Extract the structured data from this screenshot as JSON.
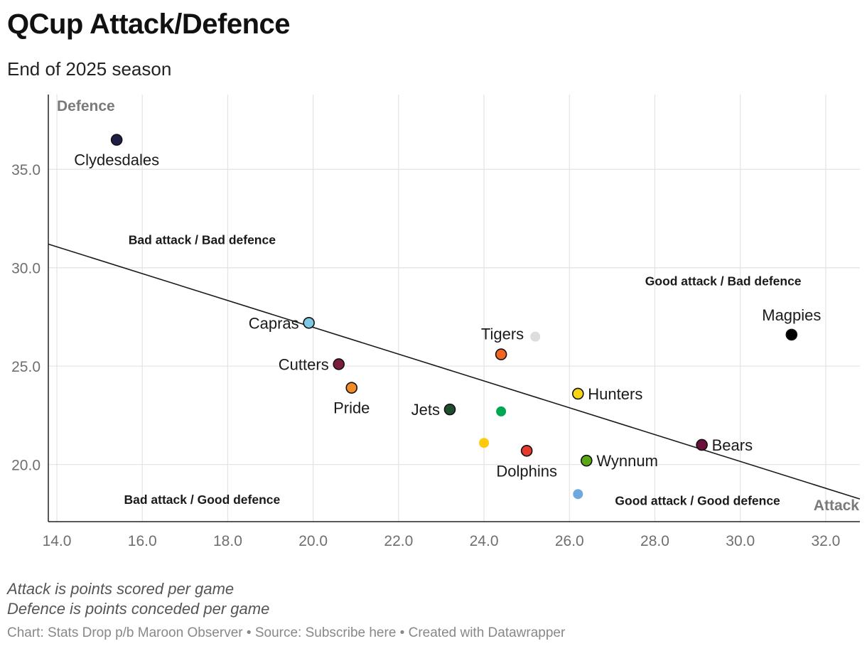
{
  "header": {
    "title": "QCup Attack/Defence",
    "subtitle": "End of 2025 season"
  },
  "notes": {
    "line1": "Attack is points scored per game",
    "line2": "Defence is points conceded per game"
  },
  "footer": {
    "chart_prefix": "Chart: ",
    "chart_by": "Stats Drop p/b Maroon Observer",
    "sep1": " • ",
    "source_prefix": "Source: ",
    "source_link": "Subscribe here",
    "sep2": " • ",
    "created": "Created with Datawrapper"
  },
  "chart_data": {
    "type": "scatter",
    "title": "QCup Attack/Defence",
    "subtitle": "End of 2025 season",
    "xlabel": "Attack",
    "ylabel": "Defence",
    "xlim": [
      13.8,
      32.8
    ],
    "ylim": [
      17.1,
      38.8
    ],
    "xticks": [
      14,
      16,
      18,
      20,
      22,
      24,
      26,
      28,
      30,
      32
    ],
    "xtick_labels": [
      "14.0",
      "16.0",
      "18.0",
      "20.0",
      "22.0",
      "24.0",
      "26.0",
      "28.0",
      "30.0",
      "32.0"
    ],
    "yticks": [
      20,
      25,
      30,
      35
    ],
    "ytick_labels": [
      "20.0",
      "25.0",
      "30.0",
      "35.0"
    ],
    "grid": true,
    "trend_line": {
      "x": [
        13.8,
        32.8
      ],
      "y": [
        31.2,
        18.25
      ]
    },
    "quadrant_labels": [
      {
        "text": "Bad attack / Bad defence",
        "x": 17.4,
        "y": 31.2
      },
      {
        "text": "Good attack / Bad defence",
        "x": 29.6,
        "y": 29.1
      },
      {
        "text": "Bad attack / Good defence",
        "x": 17.4,
        "y": 18.0
      },
      {
        "text": "Good attack / Good defence",
        "x": 29.0,
        "y": 17.95
      }
    ],
    "points": [
      {
        "label": "Clydesdales",
        "x": 15.4,
        "y": 36.5,
        "color": "#1e1e46",
        "outline": true,
        "label_pos": "below"
      },
      {
        "label": "Capras",
        "x": 19.9,
        "y": 27.2,
        "color": "#7ec8e3",
        "outline": true,
        "label_pos": "left"
      },
      {
        "label": "Cutters",
        "x": 20.6,
        "y": 25.1,
        "color": "#7a1e3c",
        "outline": true,
        "label_pos": "left"
      },
      {
        "label": "Pride",
        "x": 20.9,
        "y": 23.9,
        "color": "#f28c28",
        "outline": true,
        "label_pos": "below"
      },
      {
        "label": "Jets",
        "x": 23.2,
        "y": 22.8,
        "color": "#1f4d2e",
        "outline": true,
        "label_pos": "left"
      },
      {
        "label": "",
        "x": 24.4,
        "y": 22.7,
        "color": "#00a651",
        "outline": false,
        "label_pos": "none"
      },
      {
        "label": "",
        "x": 24.0,
        "y": 21.1,
        "color": "#ffc90e",
        "outline": false,
        "label_pos": "none"
      },
      {
        "label": "Tigers",
        "x": 25.2,
        "y": 26.5,
        "color": "#dddddd",
        "outline": false,
        "label_pos": "left-above"
      },
      {
        "label": "",
        "x": 24.4,
        "y": 25.6,
        "color": "#f26522",
        "outline": true,
        "label_pos": "none"
      },
      {
        "label": "Dolphins",
        "x": 25.0,
        "y": 20.7,
        "color": "#e63a2e",
        "outline": true,
        "label_pos": "below"
      },
      {
        "label": "Hunters",
        "x": 26.2,
        "y": 23.6,
        "color": "#f5d414",
        "outline": true,
        "label_pos": "right"
      },
      {
        "label": "Wynnum",
        "x": 26.4,
        "y": 20.2,
        "color": "#5aa813",
        "outline": true,
        "label_pos": "right"
      },
      {
        "label": "",
        "x": 26.2,
        "y": 18.5,
        "color": "#6fa8dc",
        "outline": false,
        "label_pos": "none"
      },
      {
        "label": "Bears",
        "x": 29.1,
        "y": 21.0,
        "color": "#6b0f3c",
        "outline": true,
        "label_pos": "right"
      },
      {
        "label": "Magpies",
        "x": 31.2,
        "y": 26.6,
        "color": "#000000",
        "outline": true,
        "label_pos": "above"
      }
    ]
  }
}
